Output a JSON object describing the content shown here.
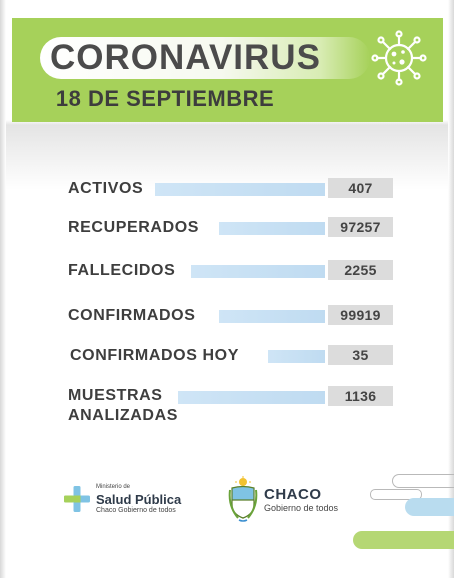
{
  "header": {
    "title": "CORONAVIRUS",
    "date": "18 DE SEPTIEMBRE",
    "colors": {
      "green": "#a6d15a",
      "title_text": "#4b4b4b"
    },
    "icon": "virus-icon"
  },
  "stats": [
    {
      "label": "ACTIVOS",
      "value": "407"
    },
    {
      "label": "RECUPERADOS",
      "value": "97257"
    },
    {
      "label": "FALLECIDOS",
      "value": "2255"
    },
    {
      "label": "CONFIRMADOS",
      "value": "99919"
    },
    {
      "label": "CONFIRMADOS HOY",
      "value": "35"
    },
    {
      "label_line1": "MUESTRAS",
      "label_line2": "ANALIZADAS",
      "value": "1136"
    }
  ],
  "footer": {
    "salud": {
      "small": "Ministerio de",
      "big": "Salud Pública",
      "sub": "Chaco Gobierno de todos",
      "icon": "plus-icon"
    },
    "chaco": {
      "big": "CHACO",
      "sub": "Gobierno de todos",
      "icon": "shield-icon"
    },
    "colors": {
      "accent_blue": "#b9dcef",
      "accent_green": "#b5d774"
    }
  }
}
